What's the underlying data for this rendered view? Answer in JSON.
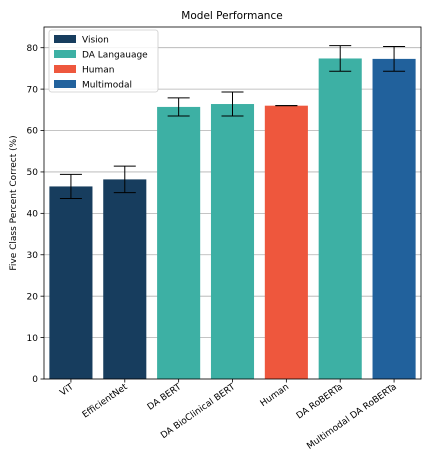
{
  "chart_data": {
    "type": "bar",
    "title": "Model Performance",
    "xlabel": "",
    "ylabel": "Five Class Percent Correct (%)",
    "ylim": [
      0,
      85
    ],
    "yticks": [
      0,
      10,
      20,
      30,
      40,
      50,
      60,
      70,
      80
    ],
    "grid": "y",
    "legend_position": "top-left",
    "categories": [
      "ViT",
      "EfficientNet",
      "DA BERT",
      "DA BioClinical BERT",
      "Human",
      "DA RoBERTa",
      "Multimodal DA RoBERTa"
    ],
    "values": [
      46.5,
      48.2,
      65.7,
      66.4,
      66.0,
      77.4,
      77.3
    ],
    "errors": [
      2.9,
      3.2,
      2.2,
      2.9,
      0,
      3.1,
      3.0
    ],
    "groups": [
      "Vision",
      "Vision",
      "DA Langauage",
      "DA Langauage",
      "Human",
      "DA Langauage",
      "Multimodal"
    ],
    "legend": [
      {
        "name": "Vision",
        "color": "#173d5e"
      },
      {
        "name": "DA Langauage",
        "color": "#3db0a4"
      },
      {
        "name": "Human",
        "color": "#ee573d"
      },
      {
        "name": "Multimodal",
        "color": "#21619c"
      }
    ]
  }
}
